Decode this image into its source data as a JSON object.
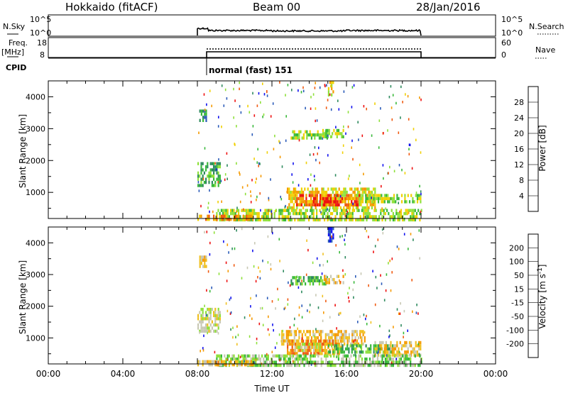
{
  "header": {
    "station": "Hokkaido (fitACF)",
    "beam": "Beam 00",
    "date": "28/Jan/2016"
  },
  "nsky_panel": {
    "left_label": "N.Sky",
    "right_label": "N.Search",
    "ticks": [
      "10^5",
      "10^0"
    ]
  },
  "freq_panel": {
    "left_label_1": "Freq.",
    "left_label_2": "[MHz]",
    "left_ticks": [
      "18",
      "8"
    ],
    "right_ticks": [
      "60",
      "0"
    ],
    "right_label": "Nave"
  },
  "cpid": {
    "label": "CPID",
    "mode": "normal (fast) 151"
  },
  "colors": {
    "power": [
      "#1010ee",
      "#2a5ab8",
      "#2e8a5e",
      "#39b93a",
      "#8ee03a",
      "#f0d000",
      "#f59a00",
      "#f05a10",
      "#ee1010"
    ],
    "velocity": [
      "#ee1010",
      "#f05a10",
      "#f59a00",
      "#f0c020",
      "#c8c8b4",
      "#8ee03a",
      "#39b93a",
      "#2e8a5e",
      "#2a5ab8",
      "#1010ee"
    ]
  },
  "chart_data": [
    {
      "type": "heatmap",
      "name": "power",
      "ylabel": "Slant Range [km]",
      "yticks": [
        1000,
        2000,
        3000,
        4000
      ],
      "ylim": [
        180,
        4500
      ],
      "xlim_hours": [
        0,
        24
      ],
      "cbar_label": "Power [dB]",
      "cbar_ticks": [
        "28",
        "24",
        "20",
        "16",
        "12",
        "8",
        "4"
      ],
      "cbar_range": [
        0,
        32
      ],
      "blobs": [
        {
          "t0": 8.0,
          "t1": 9.2,
          "r0": 1250,
          "r1": 1950,
          "level": 3
        },
        {
          "t0": 8.1,
          "t1": 8.5,
          "r0": 3300,
          "r1": 3600,
          "level": 2
        },
        {
          "t0": 12.8,
          "t1": 17.5,
          "r0": 500,
          "r1": 1150,
          "level": 5
        },
        {
          "t0": 13.3,
          "t1": 16.7,
          "r0": 600,
          "r1": 950,
          "level": 7
        },
        {
          "t0": 14.2,
          "t1": 15.4,
          "r0": 650,
          "r1": 850,
          "level": 8
        },
        {
          "t0": 16.5,
          "t1": 20.0,
          "r0": 700,
          "r1": 950,
          "level": 4
        },
        {
          "t0": 13.0,
          "t1": 15.0,
          "r0": 2750,
          "r1": 2950,
          "level": 4
        },
        {
          "t0": 14.7,
          "t1": 15.8,
          "r0": 2780,
          "r1": 2990,
          "level": 4
        },
        {
          "t0": 15.0,
          "t1": 15.3,
          "r0": 4100,
          "r1": 4500,
          "level": 5
        },
        {
          "t0": 9.0,
          "t1": 20.0,
          "r0": 180,
          "r1": 480,
          "level": 4
        },
        {
          "t0": 8.0,
          "t1": 11.0,
          "r0": 180,
          "r1": 300,
          "level": 6
        }
      ]
    },
    {
      "type": "heatmap",
      "name": "velocity",
      "ylabel": "Slant Range [km]",
      "xlabel": "Time UT",
      "yticks": [
        1000,
        2000,
        3000,
        4000
      ],
      "ylim": [
        180,
        4500
      ],
      "xlim_hours": [
        0,
        24
      ],
      "xticks": [
        "00:00",
        "04:00",
        "08:00",
        "12:00",
        "16:00",
        "20:00",
        "00:00"
      ],
      "cbar_label": "Velocity [m s",
      "cbar_label_sup": "-1",
      "cbar_label_end": "]",
      "cbar_ticks": [
        "200",
        "100",
        "50",
        "15",
        "-15",
        "-50",
        "-100",
        "-200"
      ],
      "blobs": [
        {
          "t0": 8.0,
          "t1": 9.2,
          "r0": 1250,
          "r1": 1950,
          "level": 4
        },
        {
          "t0": 8.1,
          "t1": 8.5,
          "r0": 3300,
          "r1": 3600,
          "level": 3
        },
        {
          "t0": 12.5,
          "t1": 17.0,
          "r0": 800,
          "r1": 1250,
          "level": 3
        },
        {
          "t0": 12.8,
          "t1": 15.8,
          "r0": 500,
          "r1": 950,
          "level": 2
        },
        {
          "t0": 13.2,
          "t1": 14.6,
          "r0": 600,
          "r1": 850,
          "level": 4
        },
        {
          "t0": 15.0,
          "t1": 18.5,
          "r0": 550,
          "r1": 800,
          "level": 6
        },
        {
          "t0": 17.5,
          "t1": 20.0,
          "r0": 450,
          "r1": 900,
          "level": 3
        },
        {
          "t0": 13.0,
          "t1": 15.0,
          "r0": 2750,
          "r1": 2950,
          "level": 6
        },
        {
          "t0": 14.7,
          "t1": 15.8,
          "r0": 2780,
          "r1": 2990,
          "level": 3
        },
        {
          "t0": 15.0,
          "t1": 15.3,
          "r0": 4100,
          "r1": 4500,
          "level": 9
        },
        {
          "t0": 9.0,
          "t1": 20.0,
          "r0": 180,
          "r1": 480,
          "level": 5
        },
        {
          "t0": 8.0,
          "t1": 11.0,
          "r0": 180,
          "r1": 300,
          "level": 3
        }
      ]
    }
  ]
}
